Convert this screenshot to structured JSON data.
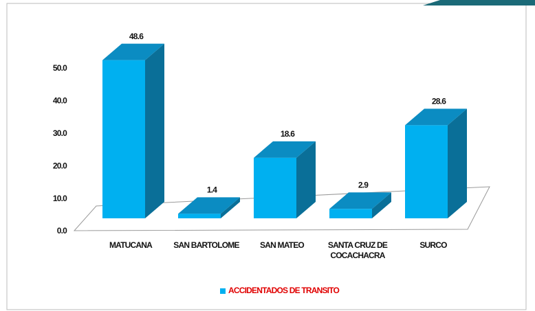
{
  "chart_data": {
    "type": "bar3d",
    "categories": [
      "MATUCANA",
      "SAN BARTOLOME",
      "SAN MATEO",
      "SANTA CRUZ DE COCACHACRA",
      "SURCO"
    ],
    "series": [
      {
        "name": "ACCIDENTADOS DE TRANSITO",
        "color": "#00b0f0",
        "values": [
          48.6,
          1.4,
          18.6,
          2.9,
          28.6
        ]
      }
    ],
    "ylim": [
      0,
      50
    ],
    "yticks": [
      {
        "value": 0,
        "label": "0.0"
      },
      {
        "value": 10,
        "label": "10.0"
      },
      {
        "value": 20,
        "label": "20.0"
      },
      {
        "value": 30,
        "label": "30.0"
      },
      {
        "value": 40,
        "label": "40.0"
      },
      {
        "value": 50,
        "label": "50.0"
      }
    ],
    "legend": "bottom"
  }
}
